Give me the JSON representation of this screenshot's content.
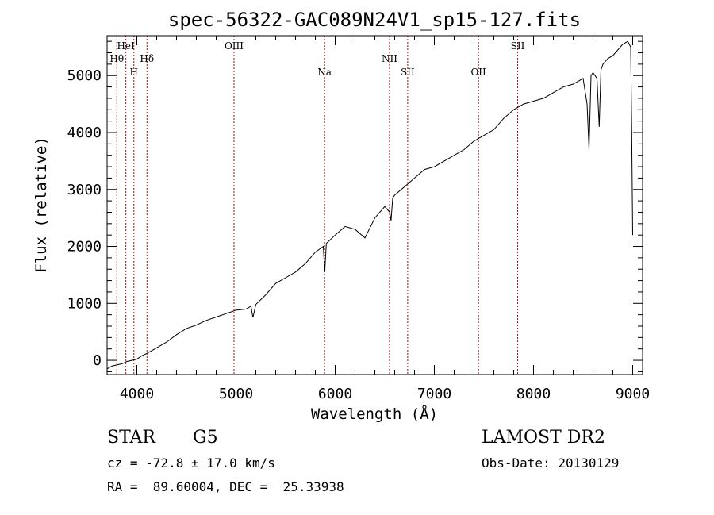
{
  "chart_data": {
    "type": "line",
    "title": "spec-56322-GAC089N24V1_sp15-127.fits",
    "xlabel": "Wavelength (Å)",
    "ylabel": "Flux (relative)",
    "xlim": [
      3700,
      9100
    ],
    "ylim": [
      -250,
      5700
    ],
    "xticks": [
      4000,
      5000,
      6000,
      7000,
      8000,
      9000
    ],
    "yticks": [
      0,
      1000,
      2000,
      3000,
      4000,
      5000
    ],
    "grid": false,
    "series": [
      {
        "x": [
          3700,
          3750,
          3800,
          3850,
          3900,
          3950,
          4000,
          4050,
          4100,
          4200,
          4300,
          4400,
          4500,
          4600,
          4700,
          4800,
          4900,
          5000,
          5100,
          5150,
          5170,
          5200,
          5300,
          5400,
          5500,
          5600,
          5700,
          5800,
          5880,
          5895,
          5910,
          6000,
          6100,
          6200,
          6300,
          6400,
          6500,
          6550,
          6563,
          6580,
          6600,
          6700,
          6800,
          6900,
          7000,
          7100,
          7200,
          7300,
          7400,
          7500,
          7600,
          7700,
          7800,
          7900,
          8000,
          8100,
          8200,
          8300,
          8400,
          8500,
          8540,
          8560,
          8580,
          8600,
          8640,
          8662,
          8680,
          8700,
          8750,
          8800,
          8850,
          8900,
          8950,
          8980,
          8990,
          9000
        ],
        "y": [
          -150,
          -100,
          -80,
          -60,
          -20,
          0,
          20,
          80,
          120,
          220,
          320,
          450,
          560,
          620,
          700,
          760,
          820,
          880,
          900,
          950,
          750,
          980,
          1150,
          1350,
          1450,
          1550,
          1700,
          1900,
          2000,
          1550,
          2050,
          2200,
          2350,
          2300,
          2150,
          2500,
          2700,
          2600,
          2450,
          2850,
          2900,
          3050,
          3200,
          3350,
          3400,
          3500,
          3600,
          3700,
          3850,
          3950,
          4050,
          4250,
          4400,
          4500,
          4550,
          4600,
          4700,
          4800,
          4850,
          4950,
          4500,
          3700,
          5000,
          5050,
          4950,
          4100,
          5100,
          5200,
          5300,
          5350,
          5450,
          5550,
          5600,
          5500,
          4000,
          2200
        ]
      }
    ],
    "line_markers": [
      {
        "label": "Hθ",
        "x": 3798,
        "row": 2
      },
      {
        "label": "HeI",
        "x": 3889,
        "row": 1
      },
      {
        "label": "H",
        "x": 3970,
        "row": 3
      },
      {
        "label": "Hδ",
        "x": 4102,
        "row": 2
      },
      {
        "label": "OIII",
        "x": 4980,
        "row": 1
      },
      {
        "label": "Na",
        "x": 5893,
        "row": 3
      },
      {
        "label": "NII",
        "x": 6548,
        "row": 2
      },
      {
        "label": "SII",
        "x": 6731,
        "row": 3
      },
      {
        "label": "OII",
        "x": 7445,
        "row": 3
      },
      {
        "label": "SII",
        "x": 7840,
        "row": 1
      }
    ]
  },
  "info": {
    "class": "STAR",
    "subclass": "G5",
    "cz": "cz = -72.8 ± 17.0 km/s",
    "coords": "RA =  89.60004, DEC =  25.33938",
    "survey": "LAMOST DR2",
    "obs_date": "Obs-Date: 20130129"
  }
}
